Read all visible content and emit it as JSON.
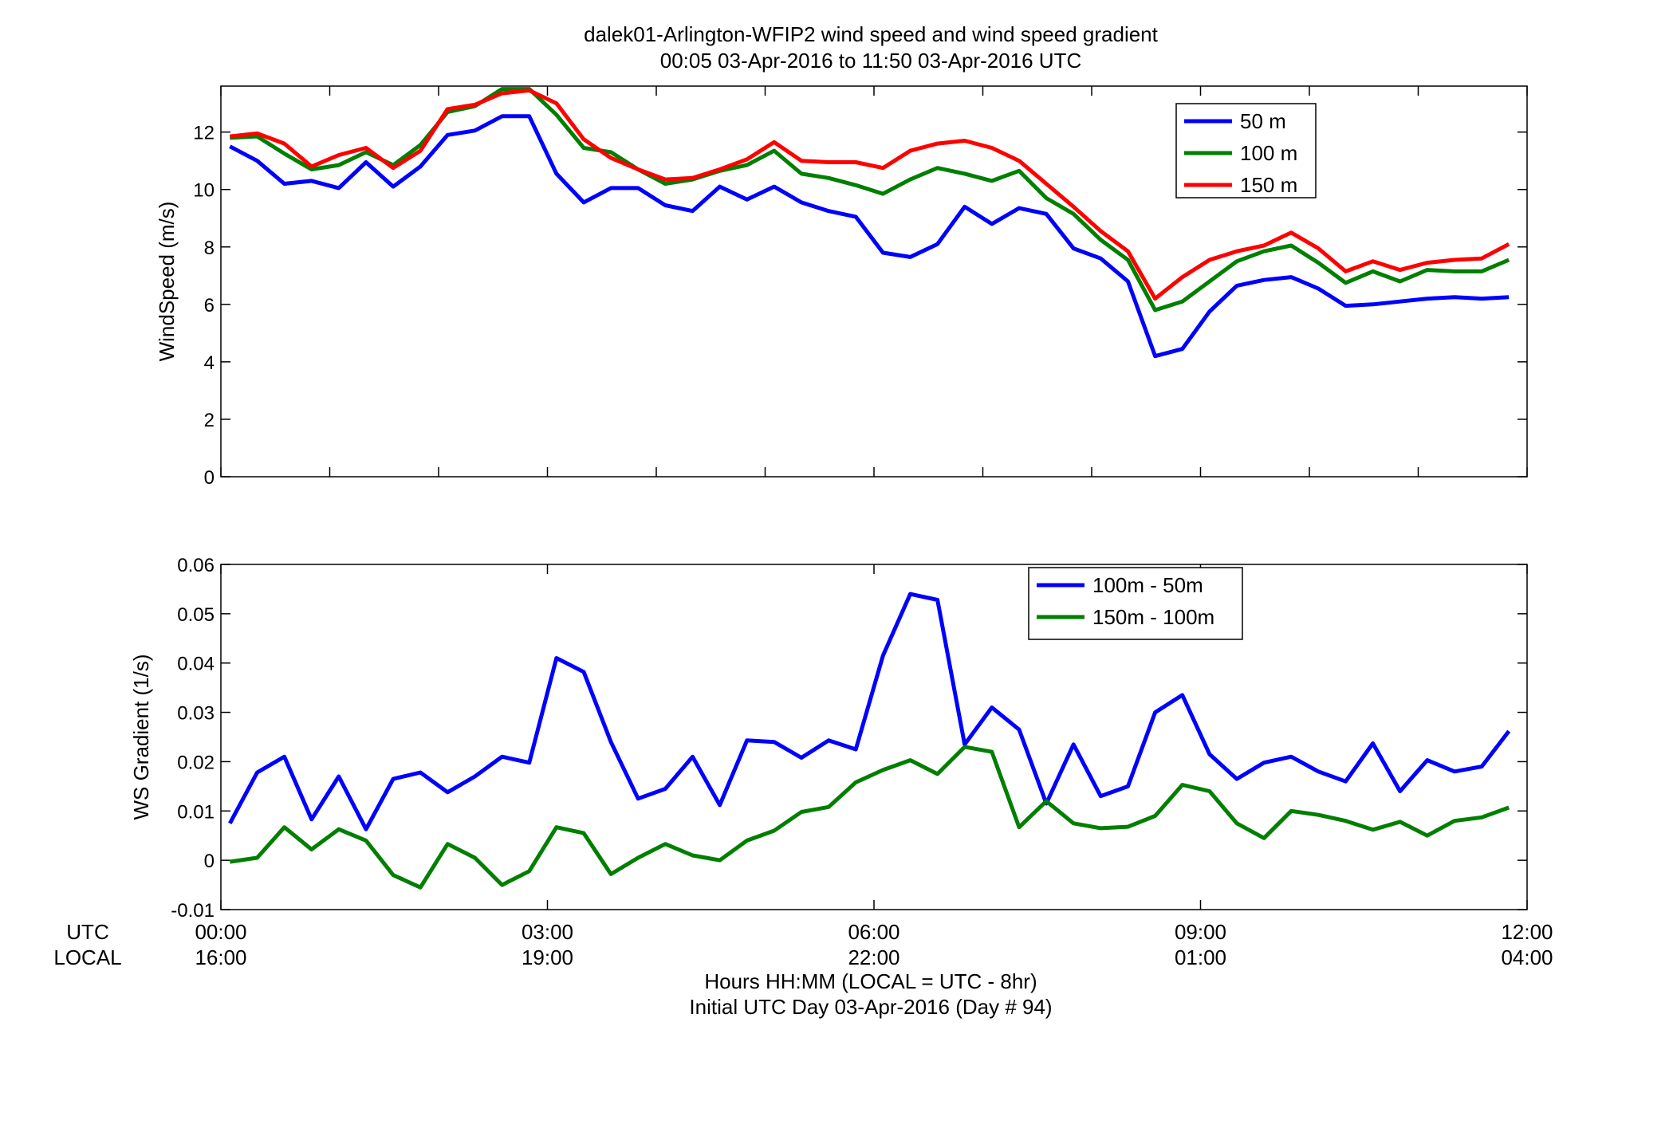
{
  "figure": {
    "title_line1": "dalek01-Arlington-WFIP2  wind speed and wind speed gradient",
    "title_line2": "00:05 03-Apr-2016 to 11:50 03-Apr-2016  UTC",
    "xlabel_line1": "Hours HH:MM  (LOCAL = UTC - 8hr)",
    "xlabel_line2": "Initial UTC Day 03-Apr-2016 (Day # 94)",
    "utc_row_label": "UTC",
    "local_row_label": "LOCAL",
    "utc_ticks": [
      "00:00",
      "03:00",
      "06:00",
      "09:00",
      "12:00"
    ],
    "local_ticks": [
      "16:00",
      "19:00",
      "22:00",
      "01:00",
      "04:00"
    ]
  },
  "chart_data": [
    {
      "type": "line",
      "ylabel": "WindSpeed (m/s)",
      "xlim": [
        0,
        12
      ],
      "ylim": [
        0,
        13.6
      ],
      "yticks": [
        0,
        2,
        4,
        6,
        8,
        10,
        12
      ],
      "ytick_labels": [
        "0",
        "2",
        "4",
        "6",
        "8",
        "10",
        "12"
      ],
      "x_minor_ticks": [
        1,
        2,
        4,
        5,
        7,
        8,
        10,
        11
      ],
      "legend_position": "top-right",
      "x": [
        0.083,
        0.333,
        0.583,
        0.833,
        1.083,
        1.333,
        1.583,
        1.833,
        2.083,
        2.333,
        2.583,
        2.833,
        3.083,
        3.333,
        3.583,
        3.833,
        4.083,
        4.333,
        4.583,
        4.833,
        5.083,
        5.333,
        5.583,
        5.833,
        6.083,
        6.333,
        6.583,
        6.833,
        7.083,
        7.333,
        7.583,
        7.833,
        8.083,
        8.333,
        8.583,
        8.833,
        9.083,
        9.333,
        9.583,
        9.833,
        10.083,
        10.333,
        10.583,
        10.833,
        11.083,
        11.333,
        11.583,
        11.833
      ],
      "series": [
        {
          "name": "50 m",
          "color": "#0000ff",
          "values": [
            11.5,
            11.0,
            10.2,
            10.3,
            10.05,
            10.95,
            10.1,
            10.8,
            11.9,
            12.05,
            12.55,
            12.55,
            10.55,
            9.55,
            10.05,
            10.05,
            9.45,
            9.25,
            10.1,
            9.65,
            10.1,
            9.55,
            9.25,
            9.05,
            7.8,
            7.65,
            8.1,
            9.4,
            8.8,
            9.35,
            9.15,
            7.95,
            7.6,
            6.8,
            4.2,
            4.45,
            5.75,
            6.65,
            6.85,
            6.95,
            6.55,
            5.95,
            6.0,
            6.1,
            6.2,
            6.25,
            6.2,
            6.25
          ]
        },
        {
          "name": "100 m",
          "color": "#007f00",
          "values": [
            11.8,
            11.85,
            11.25,
            10.7,
            10.85,
            11.3,
            10.85,
            11.55,
            12.7,
            12.9,
            13.5,
            13.5,
            12.6,
            11.45,
            11.3,
            10.7,
            10.2,
            10.35,
            10.65,
            10.85,
            11.35,
            10.55,
            10.4,
            10.15,
            9.85,
            10.35,
            10.75,
            10.55,
            10.3,
            10.65,
            9.7,
            9.15,
            8.25,
            7.55,
            5.8,
            6.1,
            6.8,
            7.5,
            7.85,
            8.05,
            7.45,
            6.75,
            7.15,
            6.8,
            7.2,
            7.15,
            7.15,
            7.55
          ]
        },
        {
          "name": "150 m",
          "color": "#ff0000",
          "values": [
            11.85,
            11.95,
            11.6,
            10.8,
            11.2,
            11.45,
            10.75,
            11.35,
            12.8,
            12.95,
            13.35,
            13.45,
            13.0,
            11.75,
            11.1,
            10.7,
            10.35,
            10.4,
            10.7,
            11.05,
            11.65,
            11.0,
            10.95,
            10.95,
            10.75,
            11.35,
            11.6,
            11.7,
            11.45,
            11.0,
            10.2,
            9.4,
            8.55,
            7.85,
            6.2,
            6.95,
            7.55,
            7.85,
            8.05,
            8.5,
            7.95,
            7.15,
            7.5,
            7.2,
            7.45,
            7.55,
            7.6,
            8.1
          ]
        }
      ]
    },
    {
      "type": "line",
      "ylabel": "WS Gradient (1/s)",
      "xlim": [
        0,
        12
      ],
      "ylim": [
        -0.01,
        0.06
      ],
      "yticks": [
        -0.01,
        0,
        0.01,
        0.02,
        0.03,
        0.04,
        0.05,
        0.06
      ],
      "ytick_labels": [
        "-0.01",
        "0",
        "0.01",
        "0.02",
        "0.03",
        "0.04",
        "0.05",
        "0.06"
      ],
      "legend_position": "top-right",
      "x": [
        0.083,
        0.333,
        0.583,
        0.833,
        1.083,
        1.333,
        1.583,
        1.833,
        2.083,
        2.333,
        2.583,
        2.833,
        3.083,
        3.333,
        3.583,
        3.833,
        4.083,
        4.333,
        4.583,
        4.833,
        5.083,
        5.333,
        5.583,
        5.833,
        6.083,
        6.333,
        6.583,
        6.833,
        7.083,
        7.333,
        7.583,
        7.833,
        8.083,
        8.333,
        8.583,
        8.833,
        9.083,
        9.333,
        9.583,
        9.833,
        10.083,
        10.333,
        10.583,
        10.833,
        11.083,
        11.333,
        11.583,
        11.833
      ],
      "series": [
        {
          "name": "100m - 50m",
          "color": "#0000ff",
          "values": [
            0.0075,
            0.0178,
            0.021,
            0.0083,
            0.017,
            0.0063,
            0.0165,
            0.0178,
            0.0138,
            0.017,
            0.021,
            0.0198,
            0.041,
            0.0382,
            0.024,
            0.0125,
            0.0145,
            0.021,
            0.0112,
            0.0243,
            0.024,
            0.0208,
            0.0243,
            0.0225,
            0.0415,
            0.054,
            0.0528,
            0.0235,
            0.031,
            0.0265,
            0.0115,
            0.0235,
            0.013,
            0.015,
            0.03,
            0.0335,
            0.0215,
            0.0165,
            0.0198,
            0.021,
            0.018,
            0.016,
            0.0237,
            0.014,
            0.0203,
            0.018,
            0.019,
            0.0262
          ]
        },
        {
          "name": "150m - 100m",
          "color": "#007f00",
          "values": [
            -0.0003,
            0.0005,
            0.0067,
            0.0022,
            0.0063,
            0.004,
            -0.003,
            -0.0055,
            0.0033,
            0.0005,
            -0.005,
            -0.0022,
            0.0067,
            0.0055,
            -0.0028,
            0.0005,
            0.0033,
            0.001,
            0.0,
            0.004,
            0.006,
            0.0098,
            0.0108,
            0.0158,
            0.0183,
            0.0203,
            0.0175,
            0.023,
            0.022,
            0.0067,
            0.012,
            0.0075,
            0.0065,
            0.0068,
            0.009,
            0.0153,
            0.014,
            0.0075,
            0.0045,
            0.01,
            0.0092,
            0.008,
            0.0062,
            0.0078,
            0.005,
            0.008,
            0.0087,
            0.0107
          ]
        }
      ]
    }
  ]
}
